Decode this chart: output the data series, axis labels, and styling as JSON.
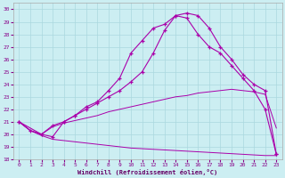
{
  "xlabel": "Windchill (Refroidissement éolien,°C)",
  "xlim": [
    -0.5,
    23.5
  ],
  "ylim": [
    18,
    30.5
  ],
  "xticks": [
    0,
    1,
    2,
    3,
    4,
    5,
    6,
    7,
    8,
    9,
    10,
    11,
    12,
    13,
    14,
    15,
    16,
    17,
    18,
    19,
    20,
    21,
    22,
    23
  ],
  "yticks": [
    18,
    19,
    20,
    21,
    22,
    23,
    24,
    25,
    26,
    27,
    28,
    29,
    30
  ],
  "background_color": "#cceef2",
  "grid_color": "#aad8de",
  "line_color": "#aa00aa",
  "line1_x": [
    0,
    1,
    2,
    3,
    4,
    5,
    6,
    7,
    8,
    9,
    10,
    11,
    12,
    13,
    14,
    15,
    16,
    17,
    18,
    19,
    20,
    21,
    22,
    23
  ],
  "line1_y": [
    21.0,
    20.3,
    19.9,
    19.6,
    19.5,
    19.4,
    19.3,
    19.2,
    19.1,
    19.0,
    18.9,
    18.85,
    18.8,
    18.75,
    18.7,
    18.65,
    18.6,
    18.55,
    18.5,
    18.45,
    18.4,
    18.35,
    18.3,
    18.3
  ],
  "line2_x": [
    0,
    1,
    2,
    3,
    4,
    5,
    6,
    7,
    8,
    9,
    10,
    11,
    12,
    13,
    14,
    15,
    16,
    17,
    18,
    19,
    20,
    21,
    22,
    23
  ],
  "line2_y": [
    21.0,
    20.3,
    20.0,
    20.6,
    20.9,
    21.1,
    21.3,
    21.5,
    21.8,
    22.0,
    22.2,
    22.4,
    22.6,
    22.8,
    23.0,
    23.1,
    23.3,
    23.4,
    23.5,
    23.6,
    23.5,
    23.4,
    23.2,
    20.5
  ],
  "line3_x": [
    0,
    1,
    2,
    3,
    4,
    5,
    6,
    7,
    8,
    9,
    10,
    11,
    12,
    13,
    14,
    15,
    16,
    17,
    18,
    19,
    20,
    21,
    22,
    23
  ],
  "line3_y": [
    21.0,
    20.3,
    20.0,
    20.7,
    21.0,
    21.5,
    22.0,
    22.5,
    23.0,
    23.5,
    24.2,
    25.0,
    26.5,
    28.3,
    29.5,
    29.3,
    28.0,
    27.0,
    26.5,
    25.5,
    24.5,
    23.5,
    22.0,
    18.4
  ],
  "line4_x": [
    0,
    2,
    3,
    4,
    5,
    6,
    7,
    8,
    9,
    10,
    11,
    12,
    13,
    14,
    15,
    16,
    17,
    18,
    19,
    20,
    21,
    22,
    23
  ],
  "line4_y": [
    21.0,
    20.0,
    19.8,
    21.0,
    21.5,
    22.2,
    22.6,
    23.5,
    24.5,
    26.5,
    27.5,
    28.5,
    28.8,
    29.5,
    29.7,
    29.5,
    28.5,
    27.0,
    26.0,
    24.8,
    24.0,
    23.5,
    18.4
  ]
}
